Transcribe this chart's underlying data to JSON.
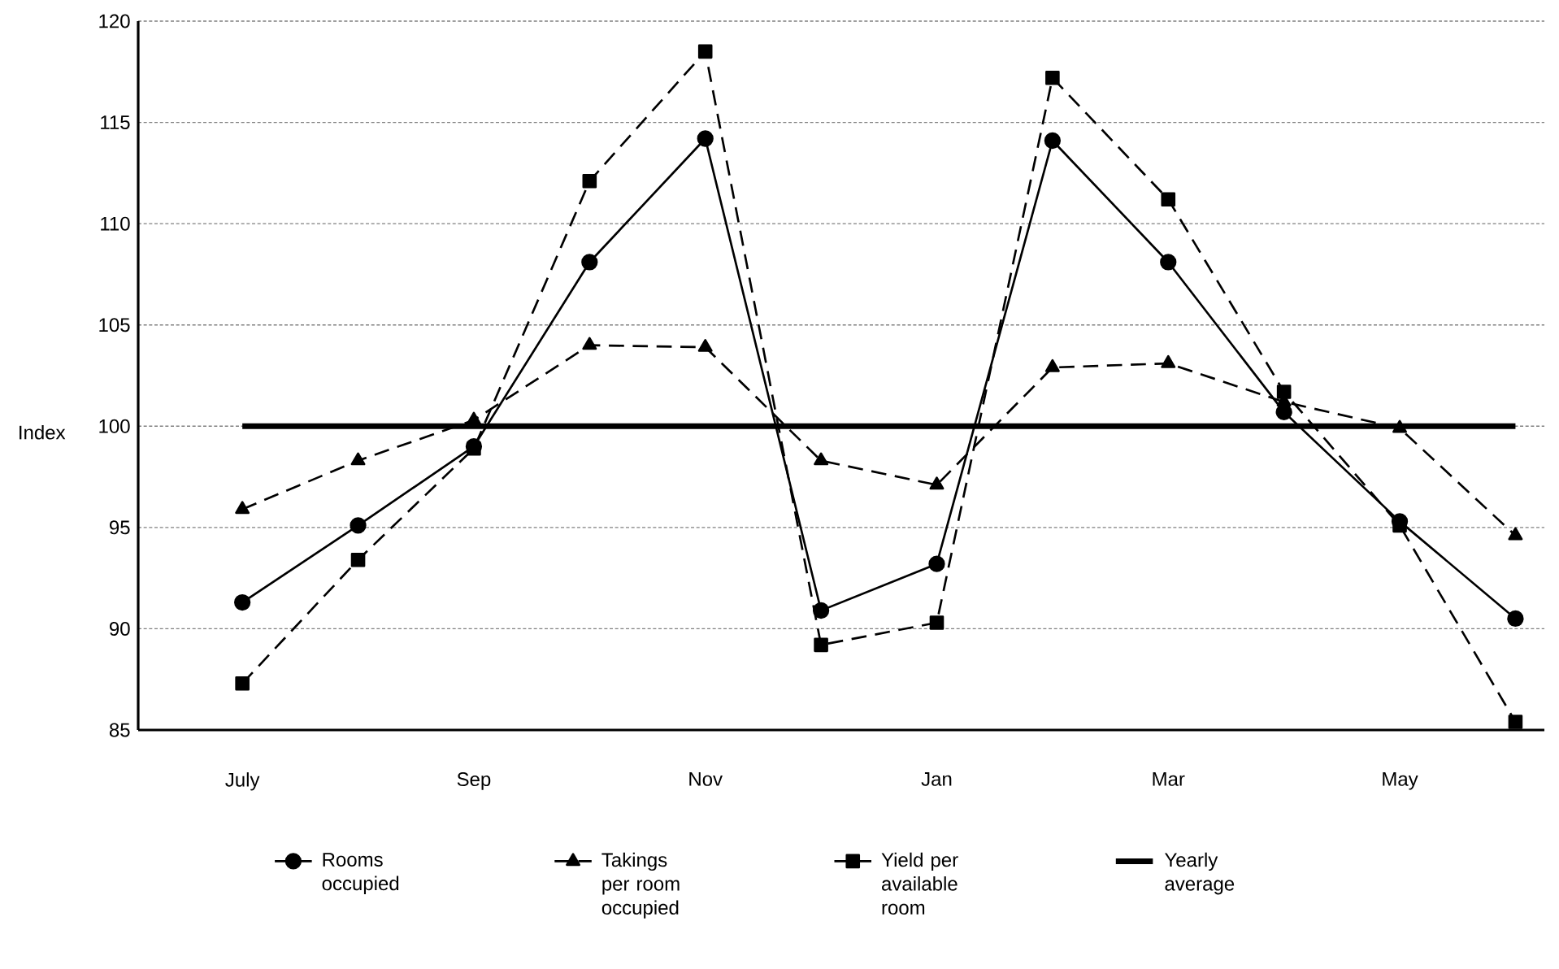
{
  "chart_data": {
    "type": "line",
    "ylabel": "Index",
    "categories": [
      "July",
      null,
      "Sep",
      null,
      "Nov",
      null,
      "Jan",
      null,
      "Mar",
      null,
      "May",
      null
    ],
    "series": [
      {
        "name": "Rooms occupied",
        "color": "#000000",
        "marker": "circle",
        "line_style": "solid",
        "values": [
          91.3,
          95.1,
          99.0,
          108.1,
          114.2,
          90.9,
          93.2,
          114.1,
          108.1,
          100.7,
          95.3,
          90.5
        ]
      },
      {
        "name": "Takings per room occupied",
        "color": "#000000",
        "marker": "triangle",
        "line_style": "dashed",
        "values": [
          95.9,
          98.3,
          100.3,
          104.0,
          103.9,
          98.3,
          97.1,
          102.9,
          103.1,
          101.2,
          99.9,
          94.6
        ]
      },
      {
        "name": "Yield per available room",
        "color": "#000000",
        "marker": "square",
        "line_style": "dashed",
        "values": [
          87.3,
          93.4,
          98.9,
          112.1,
          118.5,
          89.2,
          90.3,
          117.2,
          111.2,
          101.7,
          95.1,
          85.4
        ]
      },
      {
        "name": "Yearly average",
        "color": "#000000",
        "marker": "none",
        "line_style": "solid",
        "values": [
          100,
          100,
          100,
          100,
          100,
          100,
          100,
          100,
          100,
          100,
          100,
          100
        ]
      }
    ],
    "ylim": [
      85,
      120
    ],
    "yticks": [
      85,
      90,
      95,
      100,
      105,
      110,
      115,
      120
    ],
    "grid": "y",
    "legend": "bottom"
  }
}
